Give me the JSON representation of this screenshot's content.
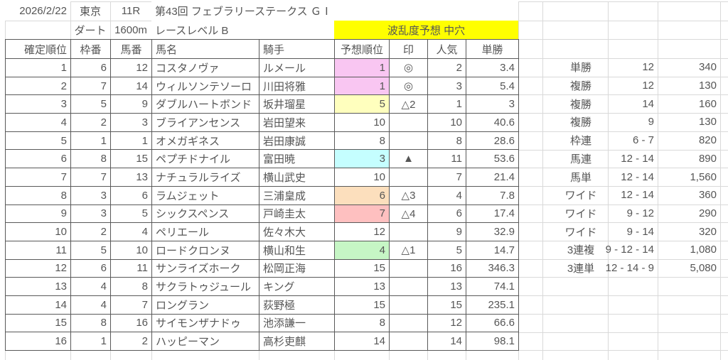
{
  "meta": {
    "date": "2026/2/22",
    "track": "東京",
    "race_no": "11R",
    "race_title": "第43回 フェブラリーステークス ＧⅠ",
    "surface": "ダート",
    "distance": "1600m",
    "race_level": "レースレベル B",
    "prediction_banner": "波乱度予想 中穴"
  },
  "colors": {
    "banner_yellow": "#ffff00",
    "highlight_pink": "#f9c6f2",
    "highlight_yellow": "#ffffbe",
    "highlight_cyan": "#c5feff",
    "highlight_peach": "#fcdfbd",
    "highlight_salmon": "#fec0c0",
    "highlight_green": "#c6f6c5",
    "grid": "#d9d9d9",
    "table_border": "#595959",
    "text": "#555555"
  },
  "table": {
    "headers": [
      "確定順位",
      "枠番",
      "馬番",
      "馬名",
      "騎手",
      "予想順位",
      "印",
      "人気",
      "単勝"
    ],
    "rows": [
      {
        "finish": 1,
        "frame": 6,
        "horse_no": 12,
        "horse": "コスタノヴァ",
        "jockey": "ルメール",
        "pred_rank": 1,
        "mark": "◎",
        "popularity": 2,
        "odds": "3.4",
        "pred_bg": "pink"
      },
      {
        "finish": 2,
        "frame": 7,
        "horse_no": 14,
        "horse": "ウィルソンテソーロ",
        "jockey": "川田将雅",
        "pred_rank": 1,
        "mark": "◎",
        "popularity": 3,
        "odds": "5.4",
        "pred_bg": "pink"
      },
      {
        "finish": 3,
        "frame": 5,
        "horse_no": 9,
        "horse": "ダブルハートボンド",
        "jockey": "坂井瑠星",
        "pred_rank": 5,
        "mark": "△2",
        "popularity": 1,
        "odds": "3",
        "pred_bg": "yellow"
      },
      {
        "finish": 4,
        "frame": 2,
        "horse_no": 3,
        "horse": "ブライアンセンス",
        "jockey": "岩田望来",
        "pred_rank": 10,
        "mark": "",
        "popularity": 10,
        "odds": "40.6",
        "pred_bg": ""
      },
      {
        "finish": 5,
        "frame": 1,
        "horse_no": 1,
        "horse": "オメガギネス",
        "jockey": "岩田康誠",
        "pred_rank": 8,
        "mark": "",
        "popularity": 8,
        "odds": "28.6",
        "pred_bg": ""
      },
      {
        "finish": 6,
        "frame": 8,
        "horse_no": 15,
        "horse": "ペプチドナイル",
        "jockey": "富田暁",
        "pred_rank": 3,
        "mark": "▲",
        "popularity": 11,
        "odds": "53.6",
        "pred_bg": "cyan"
      },
      {
        "finish": 7,
        "frame": 7,
        "horse_no": 13,
        "horse": "ナチュラルライズ",
        "jockey": "横山武史",
        "pred_rank": 10,
        "mark": "",
        "popularity": 7,
        "odds": "21.4",
        "pred_bg": ""
      },
      {
        "finish": 8,
        "frame": 3,
        "horse_no": 6,
        "horse": "ラムジェット",
        "jockey": "三浦皇成",
        "pred_rank": 6,
        "mark": "△3",
        "popularity": 4,
        "odds": "7.8",
        "pred_bg": "peach"
      },
      {
        "finish": 9,
        "frame": 3,
        "horse_no": 5,
        "horse": "シックスペンス",
        "jockey": "戸崎圭太",
        "pred_rank": 7,
        "mark": "△4",
        "popularity": 6,
        "odds": "17.4",
        "pred_bg": "salmon"
      },
      {
        "finish": 10,
        "frame": 2,
        "horse_no": 4,
        "horse": "ペリエール",
        "jockey": "佐々木大",
        "pred_rank": 12,
        "mark": "",
        "popularity": 9,
        "odds": "32.9",
        "pred_bg": ""
      },
      {
        "finish": 11,
        "frame": 5,
        "horse_no": 10,
        "horse": "ロードクロンヌ",
        "jockey": "横山和生",
        "pred_rank": 4,
        "mark": "△1",
        "popularity": 5,
        "odds": "14.7",
        "pred_bg": "green"
      },
      {
        "finish": 12,
        "frame": 6,
        "horse_no": 11,
        "horse": "サンライズホーク",
        "jockey": "松岡正海",
        "pred_rank": 15,
        "mark": "",
        "popularity": 16,
        "odds": "346.3",
        "pred_bg": ""
      },
      {
        "finish": 13,
        "frame": 4,
        "horse_no": 8,
        "horse": "サクラトゥジュール",
        "jockey": "キング",
        "pred_rank": 13,
        "mark": "",
        "popularity": 13,
        "odds": "74.1",
        "pred_bg": ""
      },
      {
        "finish": 14,
        "frame": 4,
        "horse_no": 7,
        "horse": "ロングラン",
        "jockey": "荻野極",
        "pred_rank": 15,
        "mark": "",
        "popularity": 15,
        "odds": "235.1",
        "pred_bg": ""
      },
      {
        "finish": 15,
        "frame": 8,
        "horse_no": 16,
        "horse": "サイモンザナドゥ",
        "jockey": "池添謙一",
        "pred_rank": 8,
        "mark": "",
        "popularity": 12,
        "odds": "66.6",
        "pred_bg": ""
      },
      {
        "finish": 16,
        "frame": 1,
        "horse_no": 2,
        "horse": "ハッピーマン",
        "jockey": "高杉吏麒",
        "pred_rank": 14,
        "mark": "",
        "popularity": 14,
        "odds": "98.1",
        "pred_bg": ""
      }
    ]
  },
  "payouts": [
    {
      "type": "単勝",
      "combo": "12",
      "amount": "340"
    },
    {
      "type": "複勝",
      "combo": "12",
      "amount": "130"
    },
    {
      "type": "複勝",
      "combo": "14",
      "amount": "160"
    },
    {
      "type": "複勝",
      "combo": "9",
      "amount": "130"
    },
    {
      "type": "枠連",
      "combo": "6 - 7",
      "amount": "820"
    },
    {
      "type": "馬連",
      "combo": "12 - 14",
      "amount": "890"
    },
    {
      "type": "馬単",
      "combo": "12 - 14",
      "amount": "1,560"
    },
    {
      "type": "ワイド",
      "combo": "12 - 14",
      "amount": "360"
    },
    {
      "type": "ワイド",
      "combo": "9 - 12",
      "amount": "290"
    },
    {
      "type": "ワイド",
      "combo": "9 - 14",
      "amount": "320"
    },
    {
      "type": "3連複",
      "combo": "9 - 12 - 14",
      "amount": "1,080"
    },
    {
      "type": "3連単",
      "combo": "12 - 14 - 9",
      "amount": "5,080"
    }
  ]
}
